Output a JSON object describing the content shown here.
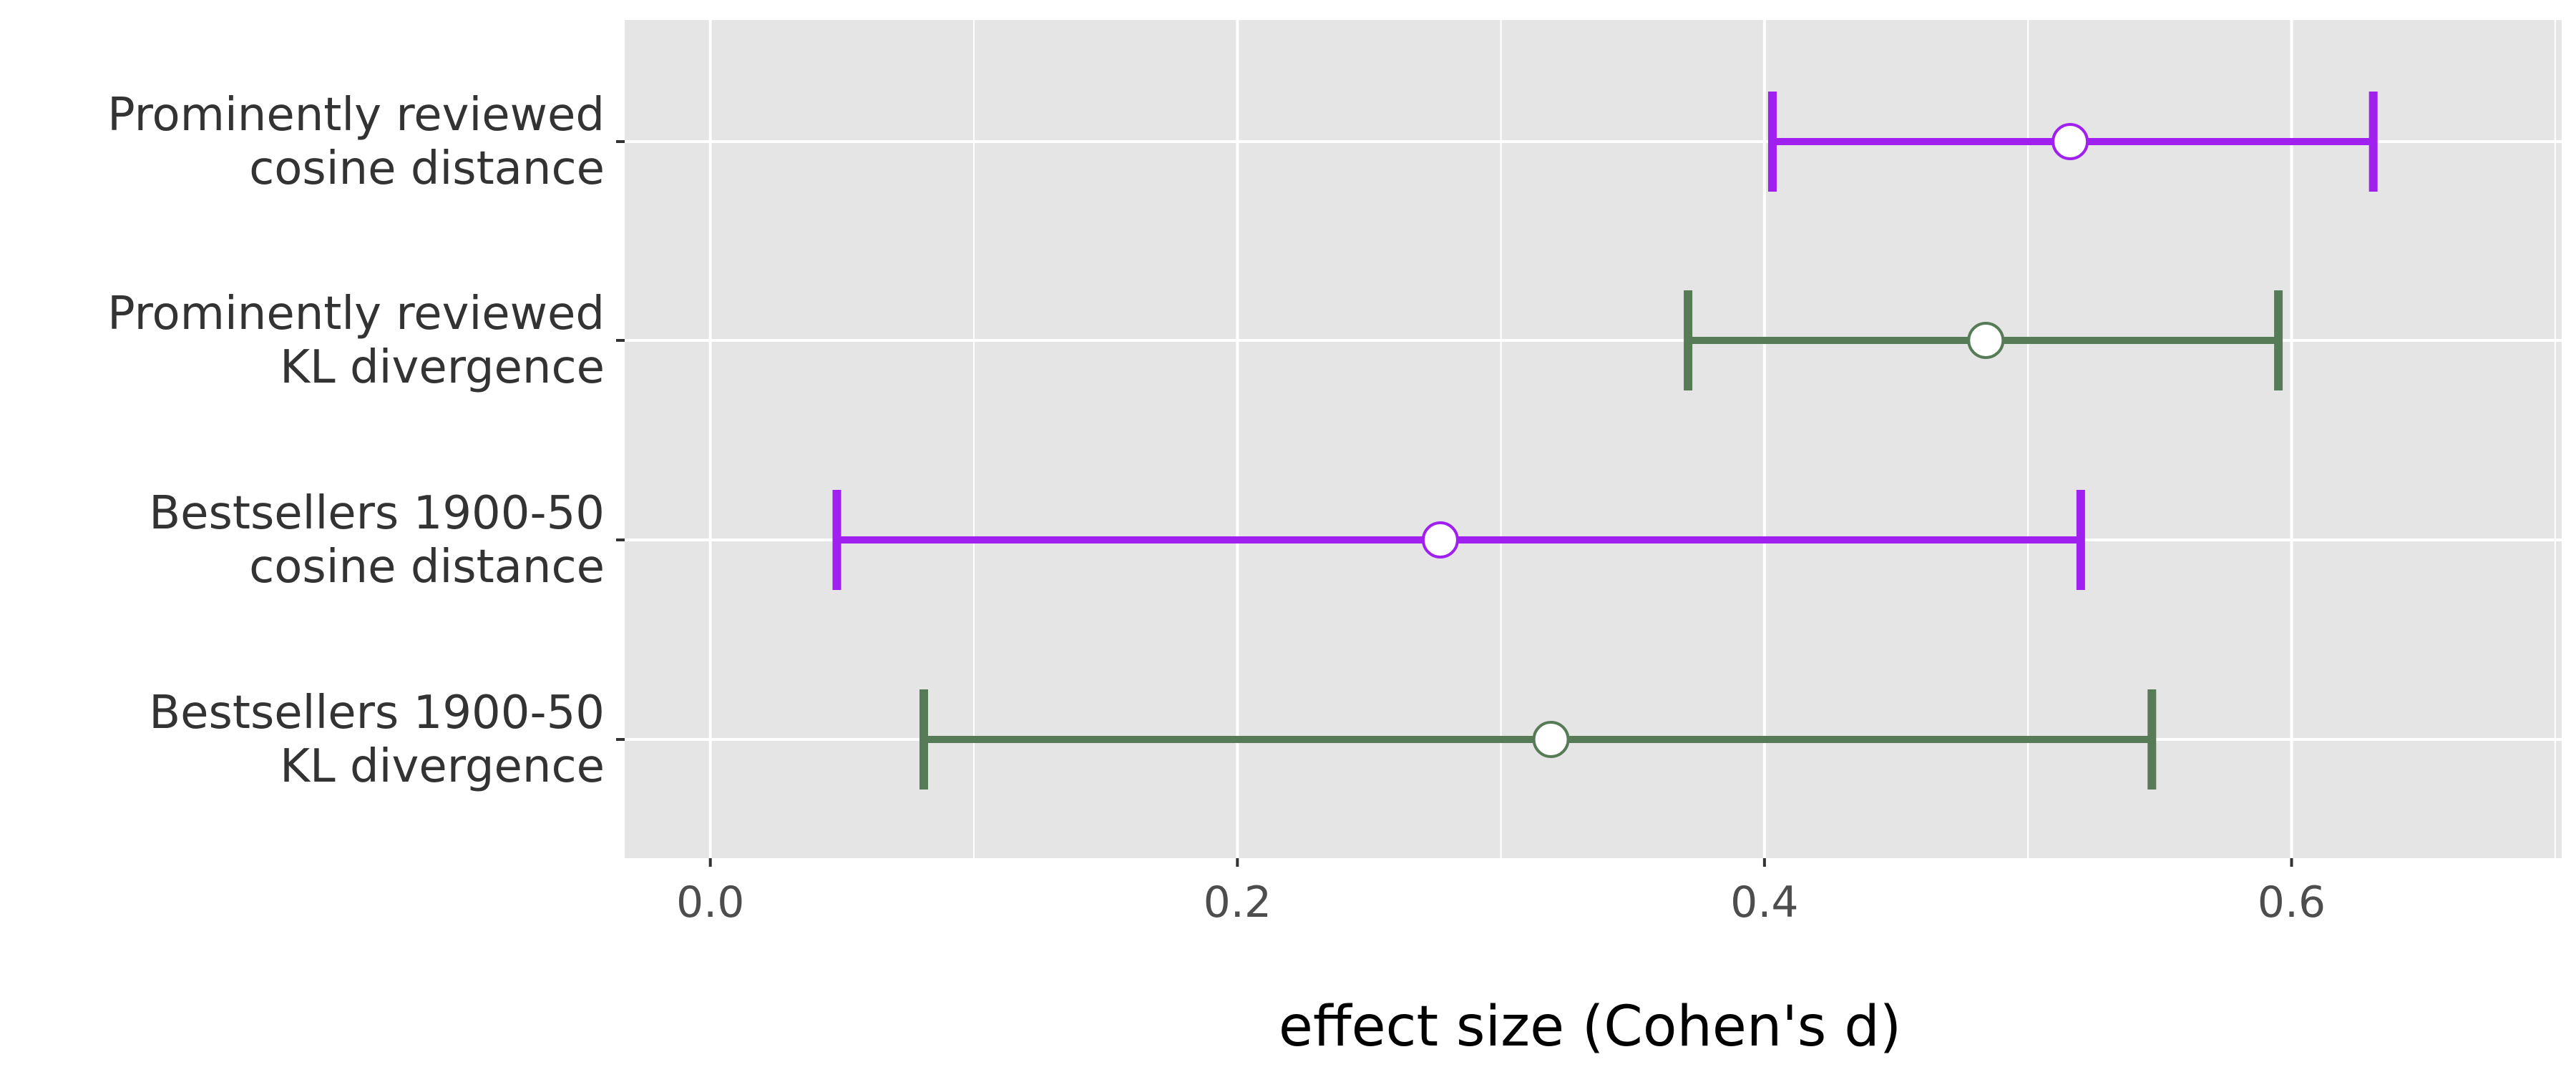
{
  "chart_data": {
    "type": "errorbar",
    "xlabel": "effect size (Cohen's d)",
    "ylabel": "",
    "title": "",
    "xlim": [
      -0.0325,
      0.7025
    ],
    "x_ticks": [
      0.0,
      0.2,
      0.4,
      0.6
    ],
    "x_tick_labels": [
      "0.0",
      "0.2",
      "0.4",
      "0.6"
    ],
    "x_minor_gridlines": [
      0.1,
      0.3,
      0.5,
      0.7
    ],
    "grid": true,
    "legend": "none",
    "background_color": "#e5e5e5",
    "grid_color": "#ffffff",
    "categories": [
      {
        "line1": "Prominently reviewed",
        "line2": "cosine distance",
        "estimate": 0.516,
        "lower": 0.403,
        "upper": 0.631,
        "color": "#a020f0"
      },
      {
        "line1": "Prominently reviewed",
        "line2": "KL divergence",
        "estimate": 0.484,
        "lower": 0.371,
        "upper": 0.595,
        "color": "#577b57"
      },
      {
        "line1": "Bestsellers 1900-50",
        "line2": "cosine distance",
        "estimate": 0.277,
        "lower": 0.048,
        "upper": 0.52,
        "color": "#a020f0"
      },
      {
        "line1": "Bestsellers 1900-50",
        "line2": "KL divergence",
        "estimate": 0.319,
        "lower": 0.081,
        "upper": 0.547,
        "color": "#577b57"
      }
    ]
  }
}
